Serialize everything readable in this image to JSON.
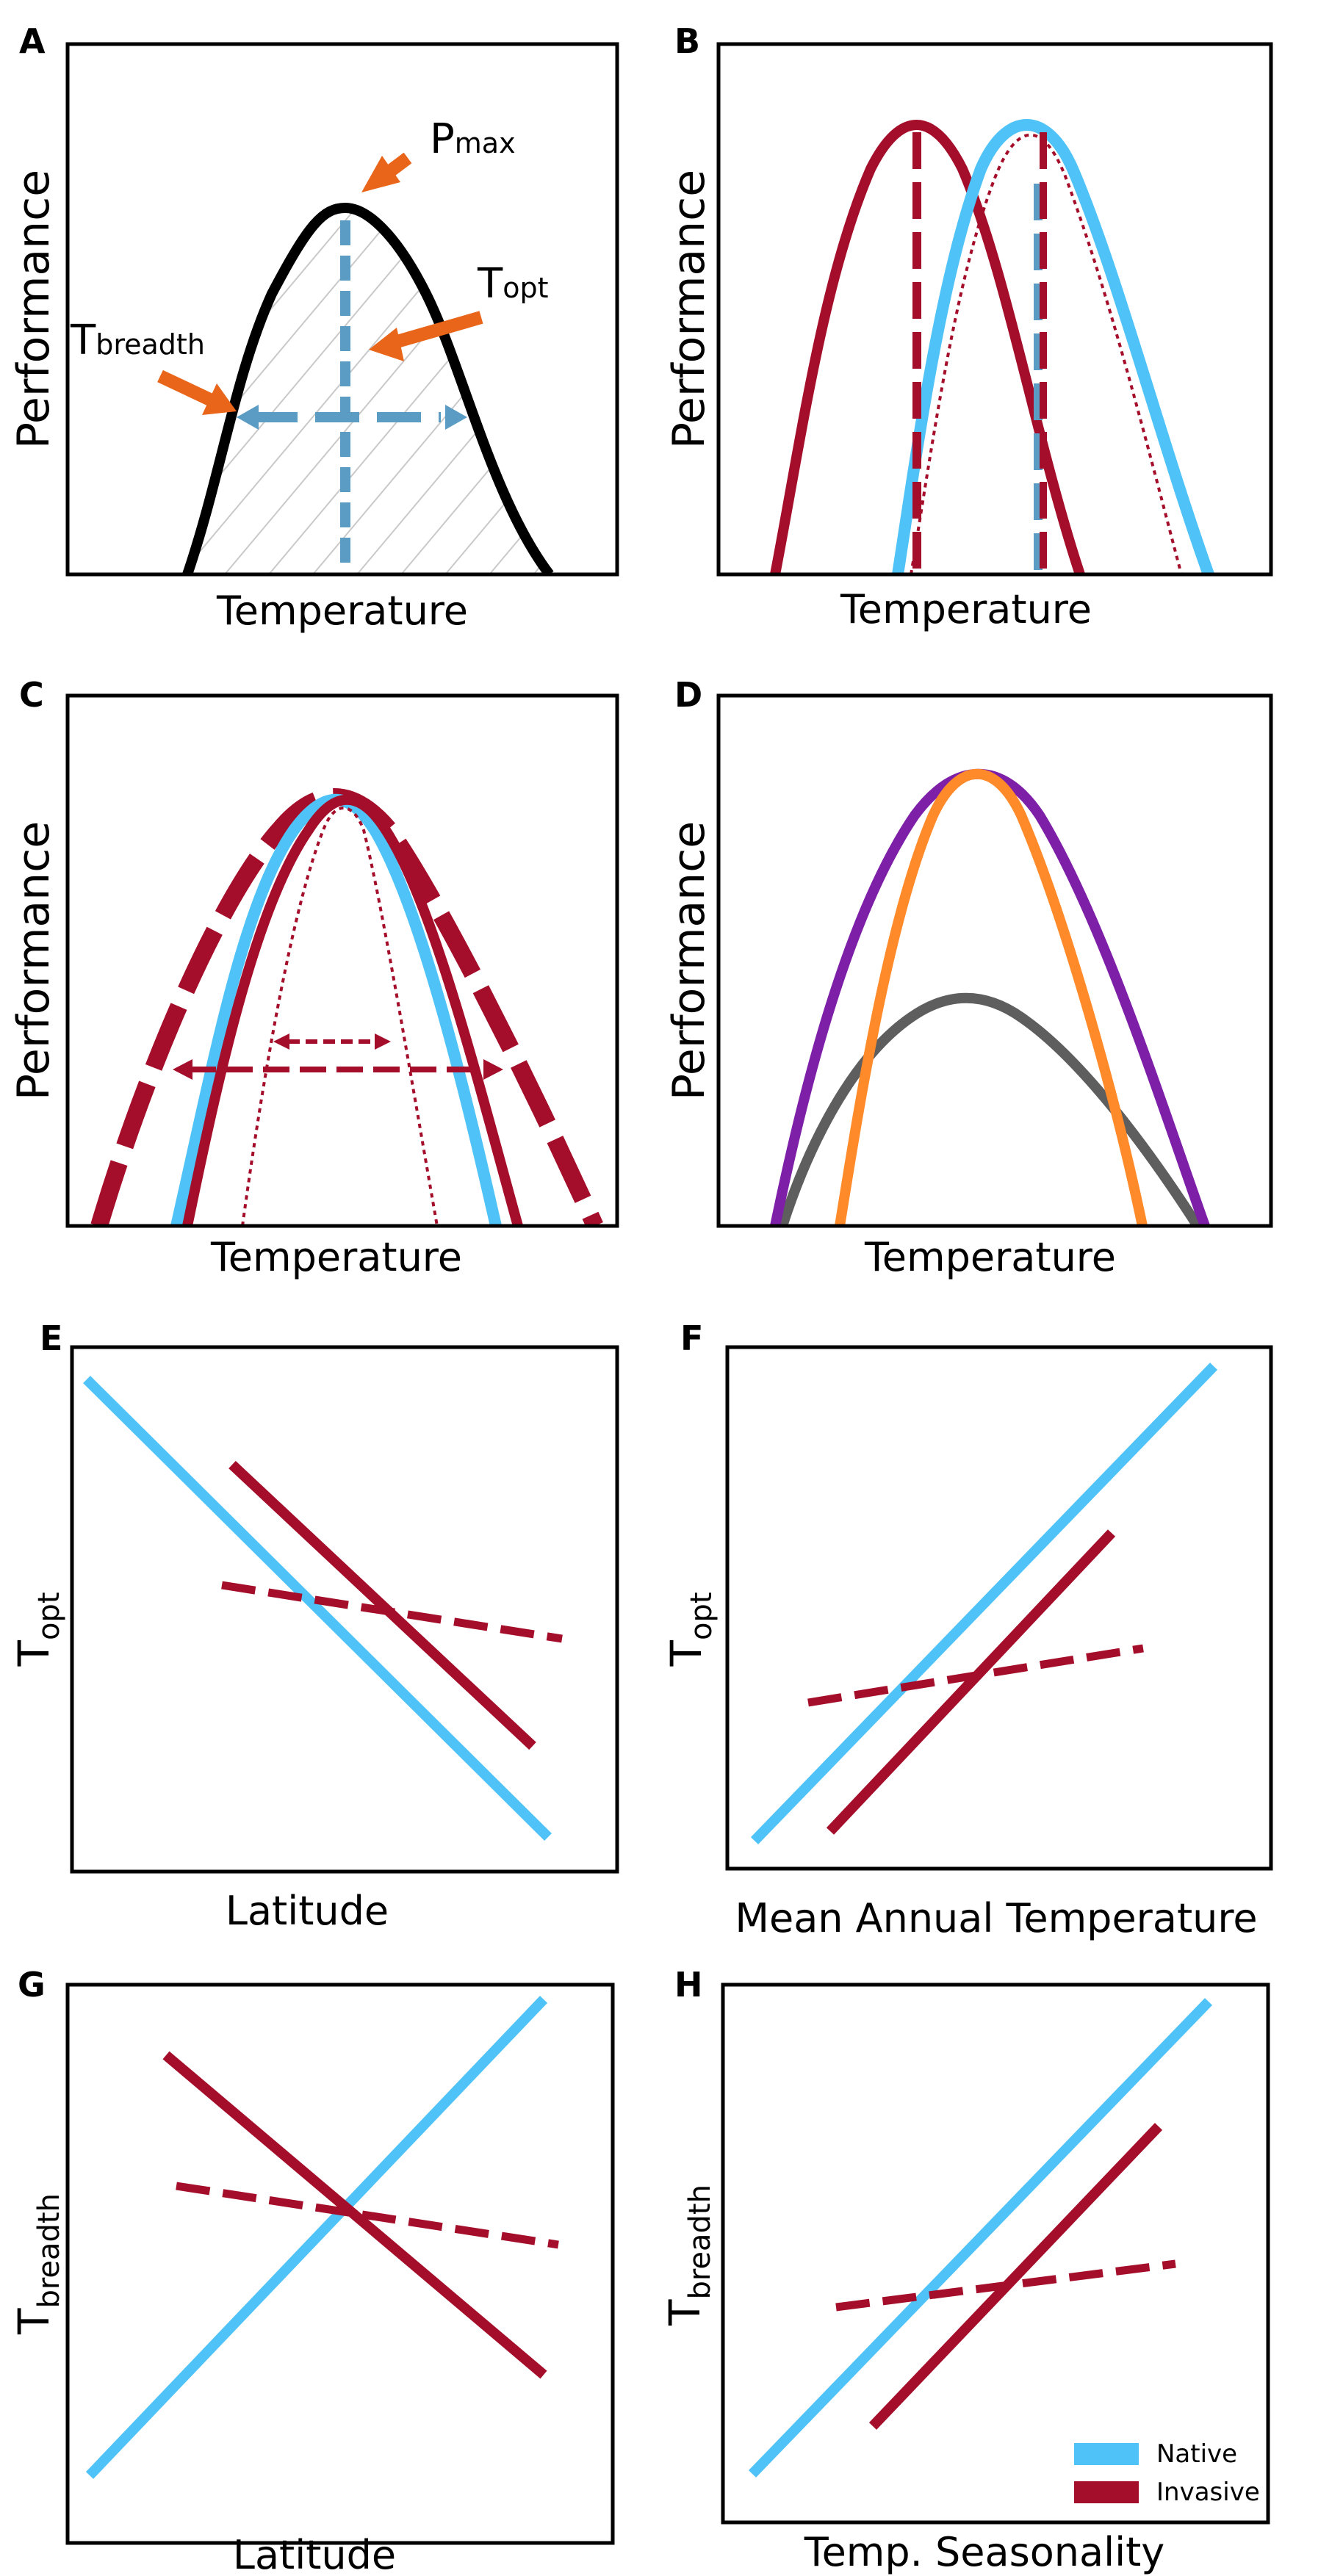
{
  "colors": {
    "native": "#4FC3F7",
    "invasive": "#A50E2A",
    "arrow": "#E8651A",
    "guide": "#5B9CC4",
    "purple": "#7E1FA8",
    "orange": "#FF8A2A",
    "gray": "#5E5E5E",
    "frame": "#000000"
  },
  "panels": {
    "A": {
      "letter": "A",
      "xlabel": "Temperature",
      "ylabel": "Performance",
      "pmax_main": "P",
      "pmax_sub": "max",
      "topt_main": "T",
      "topt_sub": "opt",
      "tbreadth_main": "T",
      "tbreadth_sub": "breadth"
    },
    "B": {
      "letter": "B",
      "xlabel": "Temperature",
      "ylabel": "Performance"
    },
    "C": {
      "letter": "C",
      "xlabel": "Temperature",
      "ylabel": "Performance"
    },
    "D": {
      "letter": "D",
      "xlabel": "Temperature",
      "ylabel": "Performance"
    },
    "E": {
      "letter": "E",
      "xlabel": "Latitude",
      "ylabel_main": "T",
      "ylabel_sub": "opt"
    },
    "F": {
      "letter": "F",
      "xlabel": "Mean Annual Temperature",
      "ylabel_main": "T",
      "ylabel_sub": "opt"
    },
    "G": {
      "letter": "G",
      "xlabel": "Latitude",
      "ylabel_main": "T",
      "ylabel_sub": "breadth"
    },
    "H": {
      "letter": "H",
      "xlabel": "Temp. Seasonality",
      "ylabel_main": "T",
      "ylabel_sub": "breadth"
    }
  },
  "legend": {
    "items": [
      {
        "label": "Native",
        "color": "#4FC3F7"
      },
      {
        "label": "Invasive",
        "color": "#A50E2A"
      }
    ]
  }
}
